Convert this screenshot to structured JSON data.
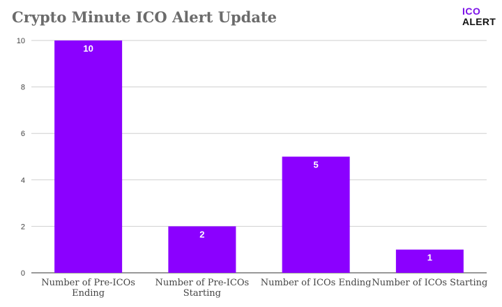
{
  "title": "Crypto Minute ICO Alert Update",
  "logo": {
    "line1": "ICO",
    "line2": "ALERT"
  },
  "colors": {
    "bar": "#8b00ff",
    "grid": "#cfcfcf",
    "axis": "#333333",
    "title": "#6b6b6b"
  },
  "chart_data": {
    "type": "bar",
    "title": "Crypto Minute ICO Alert Update",
    "categories": [
      [
        "Number of Pre-ICOs",
        "Ending"
      ],
      [
        "Number of Pre-ICOs",
        "Starting"
      ],
      [
        "Number of ICOs Ending"
      ],
      [
        "Number of ICOs Starting"
      ]
    ],
    "values": [
      10,
      2,
      5,
      1
    ],
    "data_labels": [
      "10",
      "2",
      "5",
      "1"
    ],
    "ylim": [
      0,
      10
    ],
    "yticks": [
      0,
      2,
      4,
      6,
      8,
      10
    ],
    "xlabel": "",
    "ylabel": "",
    "grid": true,
    "legend": "none"
  }
}
